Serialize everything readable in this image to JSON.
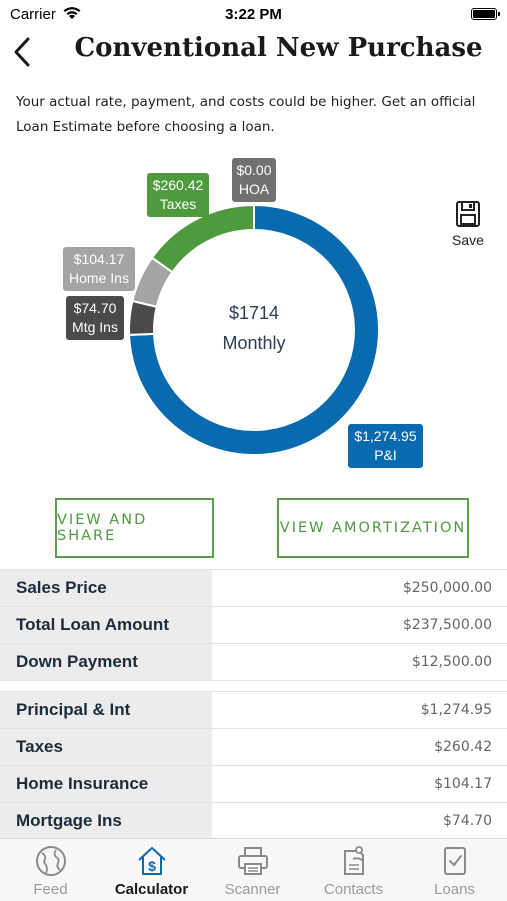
{
  "status": {
    "carrier": "Carrier",
    "time": "3:22 PM"
  },
  "header": {
    "title": "Conventional New Purchase"
  },
  "disclaimer": "Your actual rate, payment, and costs could be higher. Get an official Loan Estimate before choosing a loan.",
  "chart": {
    "center_amount": "$1714",
    "center_label": "Monthly",
    "segments": [
      {
        "value": "$1,274.95",
        "label": "P&I",
        "amount": 1274.95,
        "color": "#0a6ab0"
      },
      {
        "value": "$74.70",
        "label": "Mtg Ins",
        "amount": 74.7,
        "color": "#4a4a4a"
      },
      {
        "value": "$104.17",
        "label": "Home Ins",
        "amount": 104.17,
        "color": "#a4a4a4"
      },
      {
        "value": "$260.42",
        "label": "Taxes",
        "amount": 260.42,
        "color": "#4f9a3c"
      },
      {
        "value": "$0.00",
        "label": "HOA",
        "amount": 0,
        "color": "#707070"
      }
    ]
  },
  "save_label": "Save",
  "buttons": {
    "share": "VIEW AND SHARE",
    "amortization": "VIEW AMORTIZATION"
  },
  "loan_rows": [
    {
      "label": "Sales Price",
      "value": "$250,000.00"
    },
    {
      "label": "Total Loan Amount",
      "value": "$237,500.00"
    },
    {
      "label": "Down Payment",
      "value": "$12,500.00"
    }
  ],
  "payment_rows": [
    {
      "label": "Principal & Int",
      "value": "$1,274.95"
    },
    {
      "label": "Taxes",
      "value": "$260.42"
    },
    {
      "label": "Home Insurance",
      "value": "$104.17"
    },
    {
      "label": "Mortgage Ins",
      "value": "$74.70"
    }
  ],
  "tabs": [
    {
      "label": "Feed",
      "icon": "globe-icon"
    },
    {
      "label": "Calculator",
      "icon": "calculator-house-icon"
    },
    {
      "label": "Scanner",
      "icon": "scanner-icon"
    },
    {
      "label": "Contacts",
      "icon": "contacts-icon"
    },
    {
      "label": "Loans",
      "icon": "loans-document-icon"
    }
  ]
}
